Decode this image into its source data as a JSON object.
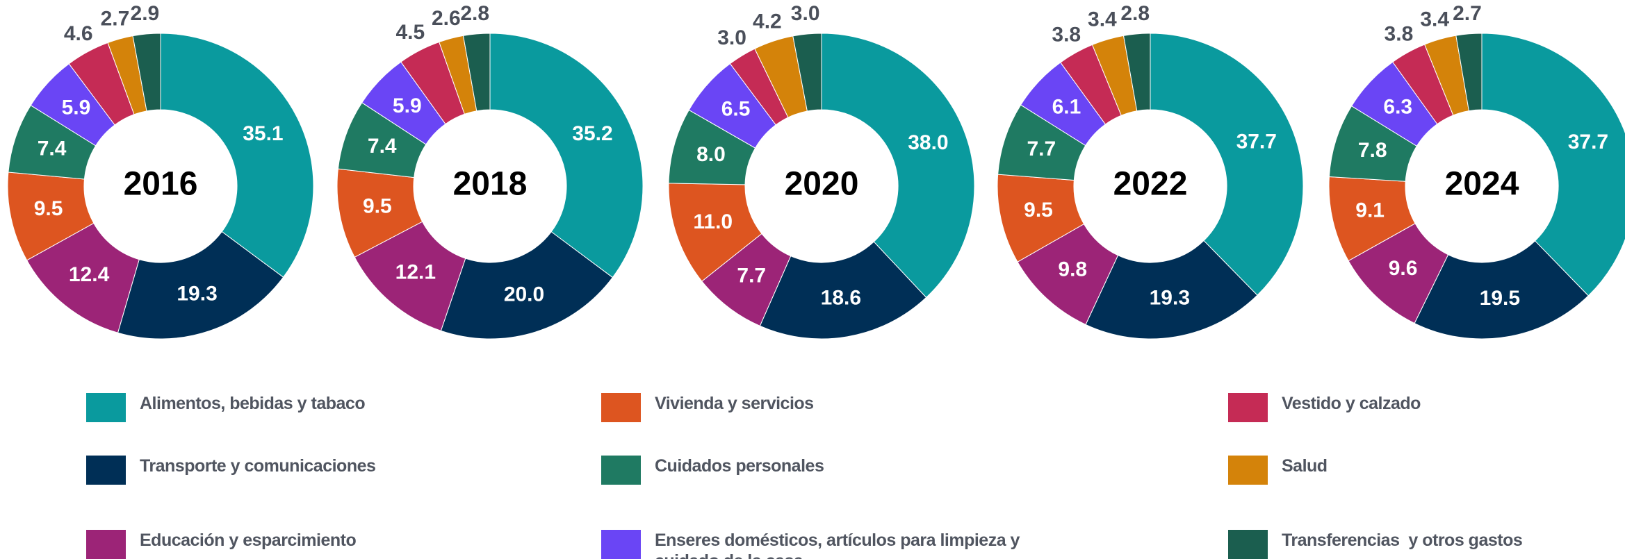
{
  "chart_data": [
    {
      "type": "pie",
      "title": "2016",
      "values": [
        35.1,
        19.3,
        12.4,
        9.5,
        7.4,
        5.9,
        4.6,
        2.7,
        2.9
      ],
      "value_labels": [
        "35.1",
        "19.3",
        "12.4",
        "9.5",
        "7.4",
        "5.9",
        "4.6",
        "2.7",
        "2.9"
      ]
    },
    {
      "type": "pie",
      "title": "2018",
      "values": [
        35.2,
        20.0,
        12.1,
        9.5,
        7.4,
        5.9,
        4.5,
        2.6,
        2.8
      ],
      "value_labels": [
        "35.2",
        "20.0",
        "12.1",
        "9.5",
        "7.4",
        "5.9",
        "4.5",
        "2.6",
        "2.8"
      ]
    },
    {
      "type": "pie",
      "title": "2020",
      "values": [
        38.0,
        18.6,
        7.7,
        11.0,
        8.0,
        6.5,
        3.0,
        4.2,
        3.0
      ],
      "value_labels": [
        "38.0",
        "18.6",
        "7.7",
        "11.0",
        "8.0",
        "6.5",
        "3.0",
        "4.2",
        "3.0"
      ]
    },
    {
      "type": "pie",
      "title": "2022",
      "values": [
        37.7,
        19.3,
        9.8,
        9.5,
        7.7,
        6.1,
        3.8,
        3.4,
        2.8
      ],
      "value_labels": [
        "37.7",
        "19.3",
        "9.8",
        "9.5",
        "7.7",
        "6.1",
        "3.8",
        "3.4",
        "2.8"
      ]
    },
    {
      "type": "pie",
      "title": "2024",
      "values": [
        37.7,
        19.5,
        9.6,
        9.1,
        7.8,
        6.3,
        3.8,
        3.4,
        2.7
      ],
      "value_labels": [
        "37.7",
        "19.5",
        "9.6",
        "9.1",
        "7.8",
        "6.3",
        "3.8",
        "3.4",
        "2.7"
      ]
    }
  ],
  "legend": [
    {
      "name": "Alimentos, bebidas y tabaco",
      "color": "#0a9a9e"
    },
    {
      "name": "Transporte y comunicaciones",
      "color": "#002f56"
    },
    {
      "name": "Educación y esparcimiento",
      "color": "#9c2477"
    },
    {
      "name": "Vivienda y servicios",
      "color": "#dd5520"
    },
    {
      "name": "Cuidados personales",
      "color": "#1f7a62"
    },
    {
      "name": "Enseres domésticos, artículos para limpieza y cuidado de la casa",
      "color": "#6a45f5"
    },
    {
      "name": "Vestido y calzado",
      "color": "#c52b55"
    },
    {
      "name": "Salud",
      "color": "#d4830a"
    },
    {
      "name": "Transferencias  y otros gastos",
      "color": "#1b5e4f"
    }
  ]
}
